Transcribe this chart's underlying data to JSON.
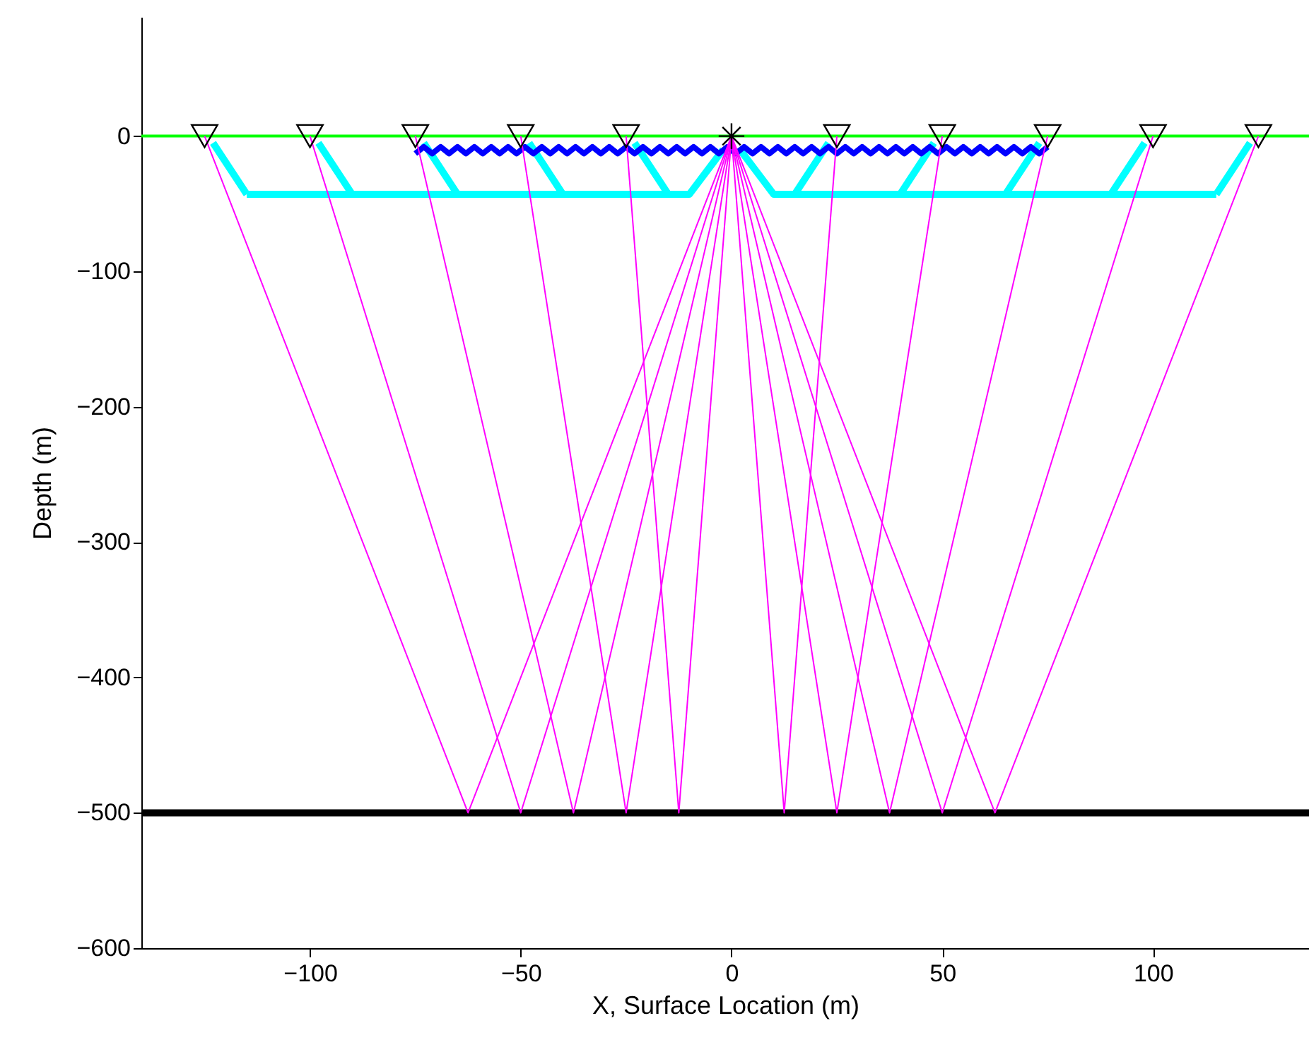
{
  "chart_data": {
    "type": "line",
    "xlabel": "X, Surface Location (m)",
    "ylabel": "Depth (m)",
    "xlim": [
      -140,
      137
    ],
    "ylim": [
      -600,
      88
    ],
    "xticks": [
      -100,
      -50,
      0,
      50,
      100
    ],
    "yticks": [
      -600,
      -500,
      -400,
      -300,
      -200,
      -100,
      0
    ],
    "grid": false,
    "ref_lines": [
      {
        "axis": "y",
        "value": 0,
        "color": "#00ff00"
      },
      {
        "axis": "y",
        "value": -500,
        "color": "#000000"
      }
    ],
    "series": [
      {
        "color": "#00ffff",
        "x": [
          -115,
          -10,
          -2
        ],
        "values": [
          -43,
          -43,
          -10
        ]
      },
      {
        "color": "#00ffff",
        "x": [
          2,
          10,
          115
        ],
        "values": [
          -10,
          -43,
          -43
        ]
      },
      {
        "color": "#00ffff",
        "x": [
          -123,
          -115
        ],
        "values": [
          -5,
          -43
        ]
      },
      {
        "color": "#00ffff",
        "x": [
          -98,
          -90
        ],
        "values": [
          -5,
          -43
        ]
      },
      {
        "color": "#00ffff",
        "x": [
          -73,
          -65
        ],
        "values": [
          -5,
          -43
        ]
      },
      {
        "color": "#00ffff",
        "x": [
          -48,
          -40
        ],
        "values": [
          -5,
          -43
        ]
      },
      {
        "color": "#00ffff",
        "x": [
          -23,
          -15
        ],
        "values": [
          -5,
          -43
        ]
      },
      {
        "color": "#00ffff",
        "x": [
          23,
          15
        ],
        "values": [
          -5,
          -43
        ]
      },
      {
        "color": "#00ffff",
        "x": [
          48,
          40
        ],
        "values": [
          -5,
          -43
        ]
      },
      {
        "color": "#00ffff",
        "x": [
          73,
          65
        ],
        "values": [
          -5,
          -43
        ]
      },
      {
        "color": "#00ffff",
        "x": [
          98,
          90
        ],
        "values": [
          -5,
          -43
        ]
      },
      {
        "color": "#00ffff",
        "x": [
          123,
          115
        ],
        "values": [
          -5,
          -43
        ]
      },
      {
        "color": "#0000ff",
        "x": [
          -75,
          -73,
          -71,
          -69,
          -67,
          -65,
          -63,
          -61,
          -59,
          -57,
          -55,
          -53,
          -51,
          -49,
          -47,
          -45,
          -43,
          -41,
          -39,
          -37,
          -35,
          -33,
          -31,
          -29,
          -27,
          -25,
          -23,
          -21,
          -19,
          -17,
          -15,
          -13,
          -11,
          -9,
          -7,
          -5,
          -3,
          -1,
          1,
          3,
          5,
          7,
          9,
          11,
          13,
          15,
          17,
          19,
          21,
          23,
          25,
          27,
          29,
          31,
          33,
          35,
          37,
          39,
          41,
          43,
          45,
          47,
          49,
          51,
          53,
          55,
          57,
          59,
          61,
          63,
          65,
          67,
          69,
          71,
          73,
          75
        ],
        "values": [
          -13,
          -8,
          -13,
          -8,
          -13,
          -8,
          -13,
          -8,
          -13,
          -8,
          -13,
          -8,
          -13,
          -8,
          -13,
          -8,
          -13,
          -8,
          -13,
          -8,
          -13,
          -8,
          -13,
          -8,
          -13,
          -8,
          -13,
          -8,
          -13,
          -8,
          -13,
          -8,
          -13,
          -8,
          -13,
          -8,
          -13,
          -8,
          -13,
          -8,
          -13,
          -8,
          -13,
          -8,
          -13,
          -8,
          -13,
          -8,
          -13,
          -8,
          -13,
          -8,
          -13,
          -8,
          -13,
          -8,
          -13,
          -8,
          -13,
          -8,
          -13,
          -8,
          -13,
          -8,
          -13,
          -8,
          -13,
          -8,
          -13,
          -8,
          -13,
          -8,
          -13,
          -8,
          -13,
          -8
        ]
      },
      {
        "color": "#ff00ff",
        "x": [
          0,
          -62.5,
          -125
        ],
        "values": [
          0,
          -500,
          0
        ]
      },
      {
        "color": "#ff00ff",
        "x": [
          0,
          -50,
          -100
        ],
        "values": [
          0,
          -500,
          0
        ]
      },
      {
        "color": "#ff00ff",
        "x": [
          0,
          -37.5,
          -75
        ],
        "values": [
          0,
          -500,
          0
        ]
      },
      {
        "color": "#ff00ff",
        "x": [
          0,
          -25,
          -50
        ],
        "values": [
          0,
          -500,
          0
        ]
      },
      {
        "color": "#ff00ff",
        "x": [
          0,
          -12.5,
          -25
        ],
        "values": [
          0,
          -500,
          0
        ]
      },
      {
        "color": "#ff00ff",
        "x": [
          0,
          12.5,
          25
        ],
        "values": [
          0,
          -500,
          0
        ]
      },
      {
        "color": "#ff00ff",
        "x": [
          0,
          25,
          50
        ],
        "values": [
          0,
          -500,
          0
        ]
      },
      {
        "color": "#ff00ff",
        "x": [
          0,
          37.5,
          75
        ],
        "values": [
          0,
          -500,
          0
        ]
      },
      {
        "color": "#ff00ff",
        "x": [
          0,
          50,
          100
        ],
        "values": [
          0,
          -500,
          0
        ]
      },
      {
        "color": "#ff00ff",
        "x": [
          0,
          62.5,
          125
        ],
        "values": [
          0,
          -500,
          0
        ]
      },
      {
        "type": "scatter",
        "marker": "triangle",
        "color": "#000000",
        "x": [
          -125,
          -100,
          -75,
          -50,
          -25,
          25,
          50,
          75,
          100,
          125
        ],
        "values": [
          0,
          0,
          0,
          0,
          0,
          0,
          0,
          0,
          0,
          0
        ]
      },
      {
        "type": "scatter",
        "marker": "cross",
        "color": "#000000",
        "x": [
          0
        ],
        "values": [
          0
        ]
      }
    ]
  }
}
